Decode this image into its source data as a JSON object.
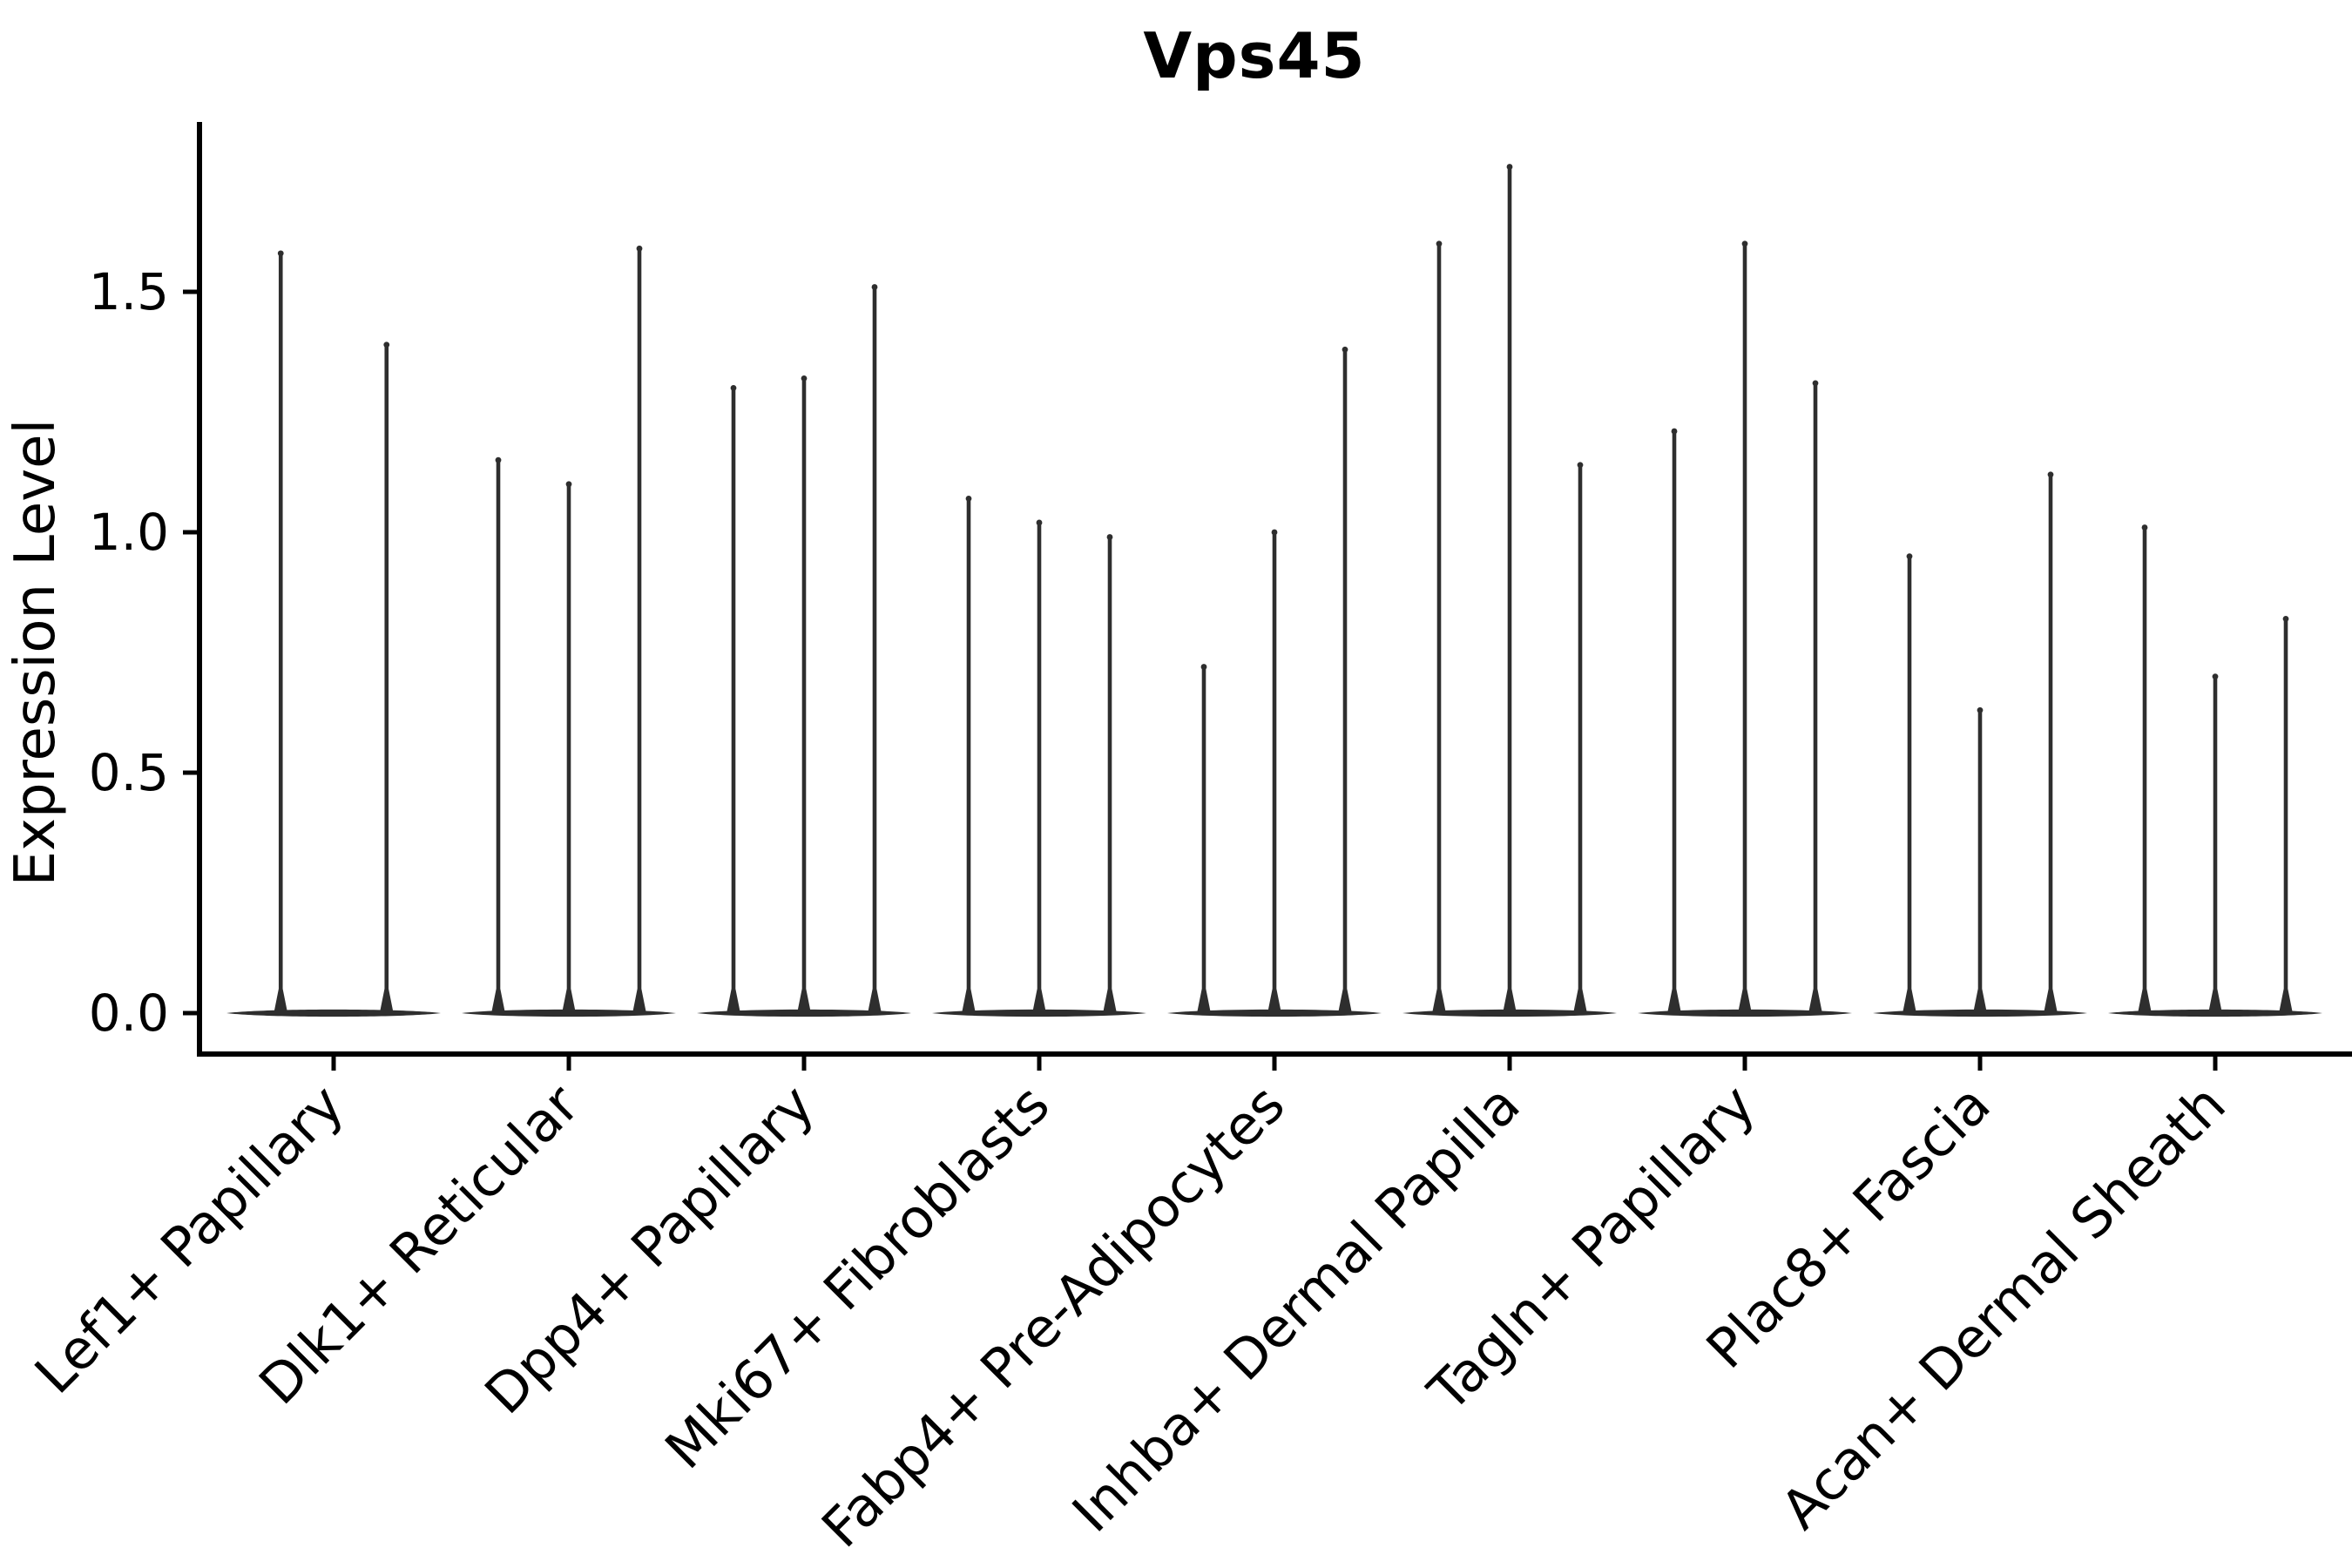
{
  "chart_data": {
    "type": "violin",
    "title": "Vps45",
    "xlabel": "",
    "ylabel": "Expression Level",
    "yticks": [
      0.0,
      0.5,
      1.0,
      1.5
    ],
    "ytick_labels": [
      "0.0",
      "0.5",
      "1.0",
      "1.5"
    ],
    "ylim": [
      -0.08,
      1.87
    ],
    "grid": false,
    "legend": false,
    "categories": [
      "Lef1+ Papillary",
      "Dlk1+ Reticular",
      "Dpp4+ Papillary",
      "Mki67+ Fibroblasts",
      "Fabp4+ Pre-Adipocytes",
      "Inhba+ Dermal Papilla",
      "Tagln+ Papillary",
      "Plac8+ Fascia",
      "Acan+ Dermal Sheath"
    ],
    "groups": [
      {
        "category": "Lef1+ Papillary",
        "violin_peaks": [
          1.58,
          1.39
        ],
        "baseline_value": 0
      },
      {
        "category": "Dlk1+ Reticular",
        "violin_peaks": [
          1.15,
          1.1,
          1.59
        ],
        "baseline_value": 0
      },
      {
        "category": "Dpp4+ Papillary",
        "violin_peaks": [
          1.3,
          1.32,
          1.51
        ],
        "baseline_value": 0
      },
      {
        "category": "Mki67+ Fibroblasts",
        "violin_peaks": [
          1.07,
          1.02,
          0.99
        ],
        "baseline_value": 0
      },
      {
        "category": "Fabp4+ Pre-Adipocytes",
        "violin_peaks": [
          0.72,
          1.0,
          1.38
        ],
        "baseline_value": 0
      },
      {
        "category": "Inhba+ Dermal Papilla",
        "violin_peaks": [
          1.6,
          1.76,
          1.14
        ],
        "baseline_value": 0
      },
      {
        "category": "Tagln+ Papillary",
        "violin_peaks": [
          1.21,
          1.6,
          1.31
        ],
        "baseline_value": 0
      },
      {
        "category": "Plac8+ Fascia",
        "violin_peaks": [
          0.95,
          0.63,
          1.12
        ],
        "baseline_value": 0
      },
      {
        "category": "Acan+ Dermal Sheath",
        "violin_peaks": [
          1.01,
          0.7,
          0.82
        ],
        "baseline_value": 0
      }
    ],
    "colors": {
      "violin": "#2e2e2e",
      "axis": "#000000",
      "text": "#000000",
      "background": "#ffffff"
    }
  }
}
